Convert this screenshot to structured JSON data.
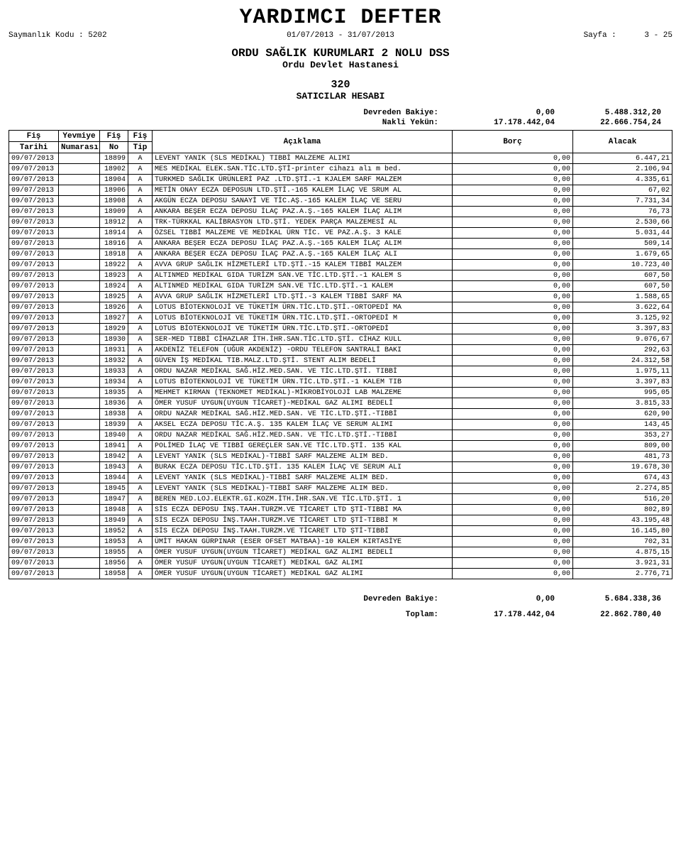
{
  "title": "YARDIMCI DEFTER",
  "meta": {
    "saymanlik_label": "Saymanlık Kodu :",
    "saymanlik_kodu": "5202",
    "date_range": "01/07/2013 - 31/07/2013",
    "page_label": "Sayfa   :",
    "page": "3 - 25"
  },
  "org": {
    "line1": "ORDU SAĞLIK KURUMLARI 2 NOLU DSS",
    "line2": "Ordu Devlet Hastanesi"
  },
  "account": {
    "code": "320",
    "name": "SATICILAR HESABI"
  },
  "top_balance": {
    "devreden_label": "Devreden Bakiye:",
    "devreden_borc": "0,00",
    "devreden_alacak": "5.488.312,20",
    "nakli_label": "Nakli Yekün:",
    "nakli_borc": "17.178.442,04",
    "nakli_alacak": "22.666.754,24"
  },
  "columns": {
    "fis_tarihi_1": "Fiş",
    "fis_tarihi_2": "Tarihi",
    "yevmiye_1": "Yevmiye",
    "yevmiye_2": "Numarası",
    "fis_no_1": "Fiş",
    "fis_no_2": "No",
    "fis_tip_1": "Fiş",
    "fis_tip_2": "Tip",
    "aciklama": "Açıklama",
    "borc": "Borç",
    "alacak": "Alacak"
  },
  "rows": [
    {
      "tarih": "09/07/2013",
      "yev": "",
      "no": "18899",
      "tip": "A",
      "acik": "LEVENT YANIK (SLS MEDİKAL) TIBBİ MALZEME ALIMI",
      "borc": "0,00",
      "alacak": "6.447,21"
    },
    {
      "tarih": "09/07/2013",
      "yev": "",
      "no": "18902",
      "tip": "A",
      "acik": "MES MEDİKAL ELEK.SAN.TİC.LTD.ŞTİ-printer cihazı alı m bed.",
      "borc": "0,00",
      "alacak": "2.106,94"
    },
    {
      "tarih": "09/07/2013",
      "yev": "",
      "no": "18904",
      "tip": "A",
      "acik": "TURKMED SAĞLIK ÜRÜNLERİ PAZ .LTD.ŞTİ.-1 KJALEM SARF MALZEM",
      "borc": "0,00",
      "alacak": "4.335,61"
    },
    {
      "tarih": "09/07/2013",
      "yev": "",
      "no": "18906",
      "tip": "A",
      "acik": "METİN ONAY ECZA DEPOSUN LTD.ŞTİ.-165 KALEM İLAÇ VE SRUM AL",
      "borc": "0,00",
      "alacak": "67,02"
    },
    {
      "tarih": "09/07/2013",
      "yev": "",
      "no": "18908",
      "tip": "A",
      "acik": "AKGÜN ECZA DEPOSU SANAYİ VE TİC.AŞ.-165 KALEM İLAÇ VE SERU",
      "borc": "0,00",
      "alacak": "7.731,34"
    },
    {
      "tarih": "09/07/2013",
      "yev": "",
      "no": "18909",
      "tip": "A",
      "acik": "ANKARA BEŞER ECZA DEPOSU İLAÇ PAZ.A.Ş.-165 KALEM İLAÇ ALIM",
      "borc": "0,00",
      "alacak": "76,73"
    },
    {
      "tarih": "09/07/2013",
      "yev": "",
      "no": "18912",
      "tip": "A",
      "acik": "TRK-TÜRKKAL KALİBRASYON LTD.ŞTİ.  YEDEK PARÇA MALZEMESİ AL",
      "borc": "0,00",
      "alacak": "2.530,66"
    },
    {
      "tarih": "09/07/2013",
      "yev": "",
      "no": "18914",
      "tip": "A",
      "acik": "ÖZSEL TIBBİ MALZEME VE MEDİKAL ÜRN TİC. VE PAZ.A.Ş. 3 KALE",
      "borc": "0,00",
      "alacak": "5.031,44"
    },
    {
      "tarih": "09/07/2013",
      "yev": "",
      "no": "18916",
      "tip": "A",
      "acik": "ANKARA BEŞER ECZA DEPOSU İLAÇ PAZ.A.Ş.-165 KALEM İLAÇ ALIM",
      "borc": "0,00",
      "alacak": "509,14"
    },
    {
      "tarih": "09/07/2013",
      "yev": "",
      "no": "18918",
      "tip": "A",
      "acik": " ANKARA BEŞER ECZA DEPOSU İLAÇ PAZ.A.Ş.-165 KALEM İLAÇ ALI",
      "borc": "0,00",
      "alacak": "1.679,65"
    },
    {
      "tarih": "09/07/2013",
      "yev": "",
      "no": "18922",
      "tip": "A",
      "acik": "AVVA GRUP SAĞLIK HİZMETLERİ LTD.ŞTİ.-15 KALEM TIBBİ MALZEM",
      "borc": "0,00",
      "alacak": "10.723,40"
    },
    {
      "tarih": "09/07/2013",
      "yev": "",
      "no": "18923",
      "tip": "A",
      "acik": "ALTINMED MEDİKAL GIDA TURİZM SAN.VE TİC.LTD.ŞTİ.-1 KALEM S",
      "borc": "0,00",
      "alacak": "607,50"
    },
    {
      "tarih": "09/07/2013",
      "yev": "",
      "no": "18924",
      "tip": "A",
      "acik": " ALTINMED MEDİKAL GIDA TURİZM SAN.VE TİC.LTD.ŞTİ.-1 KALEM",
      "borc": "0,00",
      "alacak": "607,50"
    },
    {
      "tarih": "09/07/2013",
      "yev": "",
      "no": "18925",
      "tip": "A",
      "acik": "AVVA GRUP SAĞLIK HİZMETLERİ LTD.ŞTİ.-3 KALEM TIBBİ SARF MA",
      "borc": "0,00",
      "alacak": "1.588,65"
    },
    {
      "tarih": "09/07/2013",
      "yev": "",
      "no": "18926",
      "tip": "A",
      "acik": "LOTUS BİOTEKNOLOJİ VE TÜKETİM ÜRN.TİC.LTD.ŞTİ.-ORTOPEDİ MA",
      "borc": "0,00",
      "alacak": "3.622,64"
    },
    {
      "tarih": "09/07/2013",
      "yev": "",
      "no": "18927",
      "tip": "A",
      "acik": " LOTUS BİOTEKNOLOJİ VE TÜKETİM ÜRN.TİC.LTD.ŞTİ.-ORTOPEDİ M",
      "borc": "0,00",
      "alacak": "3.125,92"
    },
    {
      "tarih": "09/07/2013",
      "yev": "",
      "no": "18929",
      "tip": "A",
      "acik": "  LOTUS BİOTEKNOLOJİ VE TÜKETİM ÜRN.TİC.LTD.ŞTİ.-ORTOPEDİ",
      "borc": "0,00",
      "alacak": "3.397,83"
    },
    {
      "tarih": "09/07/2013",
      "yev": "",
      "no": "18930",
      "tip": "A",
      "acik": "SER-MED TIBBİ CİHAZLAR İTH.İHR.SAN.TİC.LTD.ŞTİ. CİHAZ KULL",
      "borc": "0,00",
      "alacak": "9.076,67"
    },
    {
      "tarih": "09/07/2013",
      "yev": "",
      "no": "18931",
      "tip": "A",
      "acik": "AKDENİZ TELEFON (UĞUR AKDENİZ) -ORDU TELEFON SANTRALİ BAKI",
      "borc": "0,00",
      "alacak": "292,63"
    },
    {
      "tarih": "09/07/2013",
      "yev": "",
      "no": "18932",
      "tip": "A",
      "acik": "GÜVEN İŞ MEDİKAL TIB.MALZ.LTD.ŞTİ. STENT ALIM BEDELİ",
      "borc": "0,00",
      "alacak": "24.312,58"
    },
    {
      "tarih": "09/07/2013",
      "yev": "",
      "no": "18933",
      "tip": "A",
      "acik": "ORDU NAZAR MEDİKAL SAĞ.HİZ.MED.SAN. VE TİC.LTD.ŞTİ. TIBBİ",
      "borc": "0,00",
      "alacak": "1.975,11"
    },
    {
      "tarih": "09/07/2013",
      "yev": "",
      "no": "18934",
      "tip": "A",
      "acik": "LOTUS BİOTEKNOLOJİ VE TÜKETİM ÜRN.TİC.LTD.ŞTİ.-1 KALEM TIB",
      "borc": "0,00",
      "alacak": "3.397,83"
    },
    {
      "tarih": "09/07/2013",
      "yev": "",
      "no": "18935",
      "tip": "A",
      "acik": "MEHMET KIRMAN (TEKNOMET MEDİKAL)-MİKROBİYOLOJİ LAB MALZEME",
      "borc": "0,00",
      "alacak": "995,05"
    },
    {
      "tarih": "09/07/2013",
      "yev": "",
      "no": "18936",
      "tip": "A",
      "acik": "ÖMER YUSUF UYGUN(UYGUN TİCARET)-MEDİKAL GAZ ALIMI BEDELİ",
      "borc": "0,00",
      "alacak": "3.815,33"
    },
    {
      "tarih": "09/07/2013",
      "yev": "",
      "no": "18938",
      "tip": "A",
      "acik": "ORDU NAZAR MEDİKAL SAĞ.HİZ.MED.SAN. VE TİC.LTD.ŞTİ.-TIBBİ",
      "borc": "0,00",
      "alacak": "620,90"
    },
    {
      "tarih": "09/07/2013",
      "yev": "",
      "no": "18939",
      "tip": "A",
      "acik": "AKSEL ECZA DEPOSU TİC.A.Ş. 135 KALEM İLAÇ VE SERUM ALIMI",
      "borc": "0,00",
      "alacak": "143,45"
    },
    {
      "tarih": "09/07/2013",
      "yev": "",
      "no": "18940",
      "tip": "A",
      "acik": "ORDU NAZAR MEDİKAL SAĞ.HİZ.MED.SAN. VE TİC.LTD.ŞTİ.-TIBBİ",
      "borc": "0,00",
      "alacak": "353,27"
    },
    {
      "tarih": "09/07/2013",
      "yev": "",
      "no": "18941",
      "tip": "A",
      "acik": "POLİMED İLAÇ VE TIBBİ GEREÇLER SAN.VE TİC.LTD.ŞTİ. 135 KAL",
      "borc": "0,00",
      "alacak": "809,00"
    },
    {
      "tarih": "09/07/2013",
      "yev": "",
      "no": "18942",
      "tip": "A",
      "acik": "LEVENT YANIK (SLS MEDİKAL)-TIBBİ SARF MALZEME ALIM BED.",
      "borc": "0,00",
      "alacak": "481,73"
    },
    {
      "tarih": "09/07/2013",
      "yev": "",
      "no": "18943",
      "tip": "A",
      "acik": "BURAK ECZA DEPOSU TİC.LTD.ŞTİ. 135 KALEM İLAÇ VE SERUM ALI",
      "borc": "0,00",
      "alacak": "19.678,30"
    },
    {
      "tarih": "09/07/2013",
      "yev": "",
      "no": "18944",
      "tip": "A",
      "acik": " LEVENT YANIK (SLS MEDİKAL)-TIBBİ SARF MALZEME ALIM BED.",
      "borc": "0,00",
      "alacak": "674,43"
    },
    {
      "tarih": "09/07/2013",
      "yev": "",
      "no": "18945",
      "tip": "A",
      "acik": "  LEVENT YANIK (SLS MEDİKAL)-TIBBİ SARF MALZEME ALIM BED.",
      "borc": "0,00",
      "alacak": "2.274,85"
    },
    {
      "tarih": "09/07/2013",
      "yev": "",
      "no": "18947",
      "tip": "A",
      "acik": "BEREN MED.LOJ.ELEKTR.GI.KOZM.İTH.İHR.SAN.VE TİC.LTD.ŞTİ. 1",
      "borc": "0,00",
      "alacak": "516,20"
    },
    {
      "tarih": "09/07/2013",
      "yev": "",
      "no": "18948",
      "tip": "A",
      "acik": "SİS ECZA DEPOSU İNŞ.TAAH.TURZM.VE TİCARET LTD ŞTİ-TIBBİ MA",
      "borc": "0,00",
      "alacak": "802,89"
    },
    {
      "tarih": "09/07/2013",
      "yev": "",
      "no": "18949",
      "tip": "A",
      "acik": " SİS ECZA DEPOSU İNŞ.TAAH.TURZM.VE TİCARET LTD ŞTİ-TIBBİ M",
      "borc": "0,00",
      "alacak": "43.195,48"
    },
    {
      "tarih": "09/07/2013",
      "yev": "",
      "no": "18952",
      "tip": "A",
      "acik": "  SİS ECZA DEPOSU İNŞ.TAAH.TURZM.VE TİCARET LTD ŞTİ-TIBBİ",
      "borc": "0,00",
      "alacak": "16.145,80"
    },
    {
      "tarih": "09/07/2013",
      "yev": "",
      "no": "18953",
      "tip": "A",
      "acik": "ÜMİT HAKAN GÜRPINAR (ESER OFSET MATBAA)-10 KALEM KIRTASİYE",
      "borc": "0,00",
      "alacak": "702,31"
    },
    {
      "tarih": "09/07/2013",
      "yev": "",
      "no": "18955",
      "tip": "A",
      "acik": "ÖMER YUSUF UYGUN(UYGUN TİCARET)  MEDİKAL GAZ ALIMI BEDELİ",
      "borc": "0,00",
      "alacak": "4.875,15"
    },
    {
      "tarih": "09/07/2013",
      "yev": "",
      "no": "18956",
      "tip": "A",
      "acik": "ÖMER YUSUF UYGUN(UYGUN TİCARET) MEDİKAL GAZ ALIMI",
      "borc": "0,00",
      "alacak": "3.921,31"
    },
    {
      "tarih": "09/07/2013",
      "yev": "",
      "no": "18958",
      "tip": "A",
      "acik": " ÖMER YUSUF UYGUN(UYGUN TİCARET) MEDİKAL GAZ ALIMI",
      "borc": "0,00",
      "alacak": "2.776,71"
    }
  ],
  "footer": {
    "devreden_label": "Devreden Bakiye:",
    "devreden_borc": "0,00",
    "devreden_alacak": "5.684.338,36",
    "toplam_label": "Toplam:",
    "toplam_borc": "17.178.442,04",
    "toplam_alacak": "22.862.780,40"
  }
}
